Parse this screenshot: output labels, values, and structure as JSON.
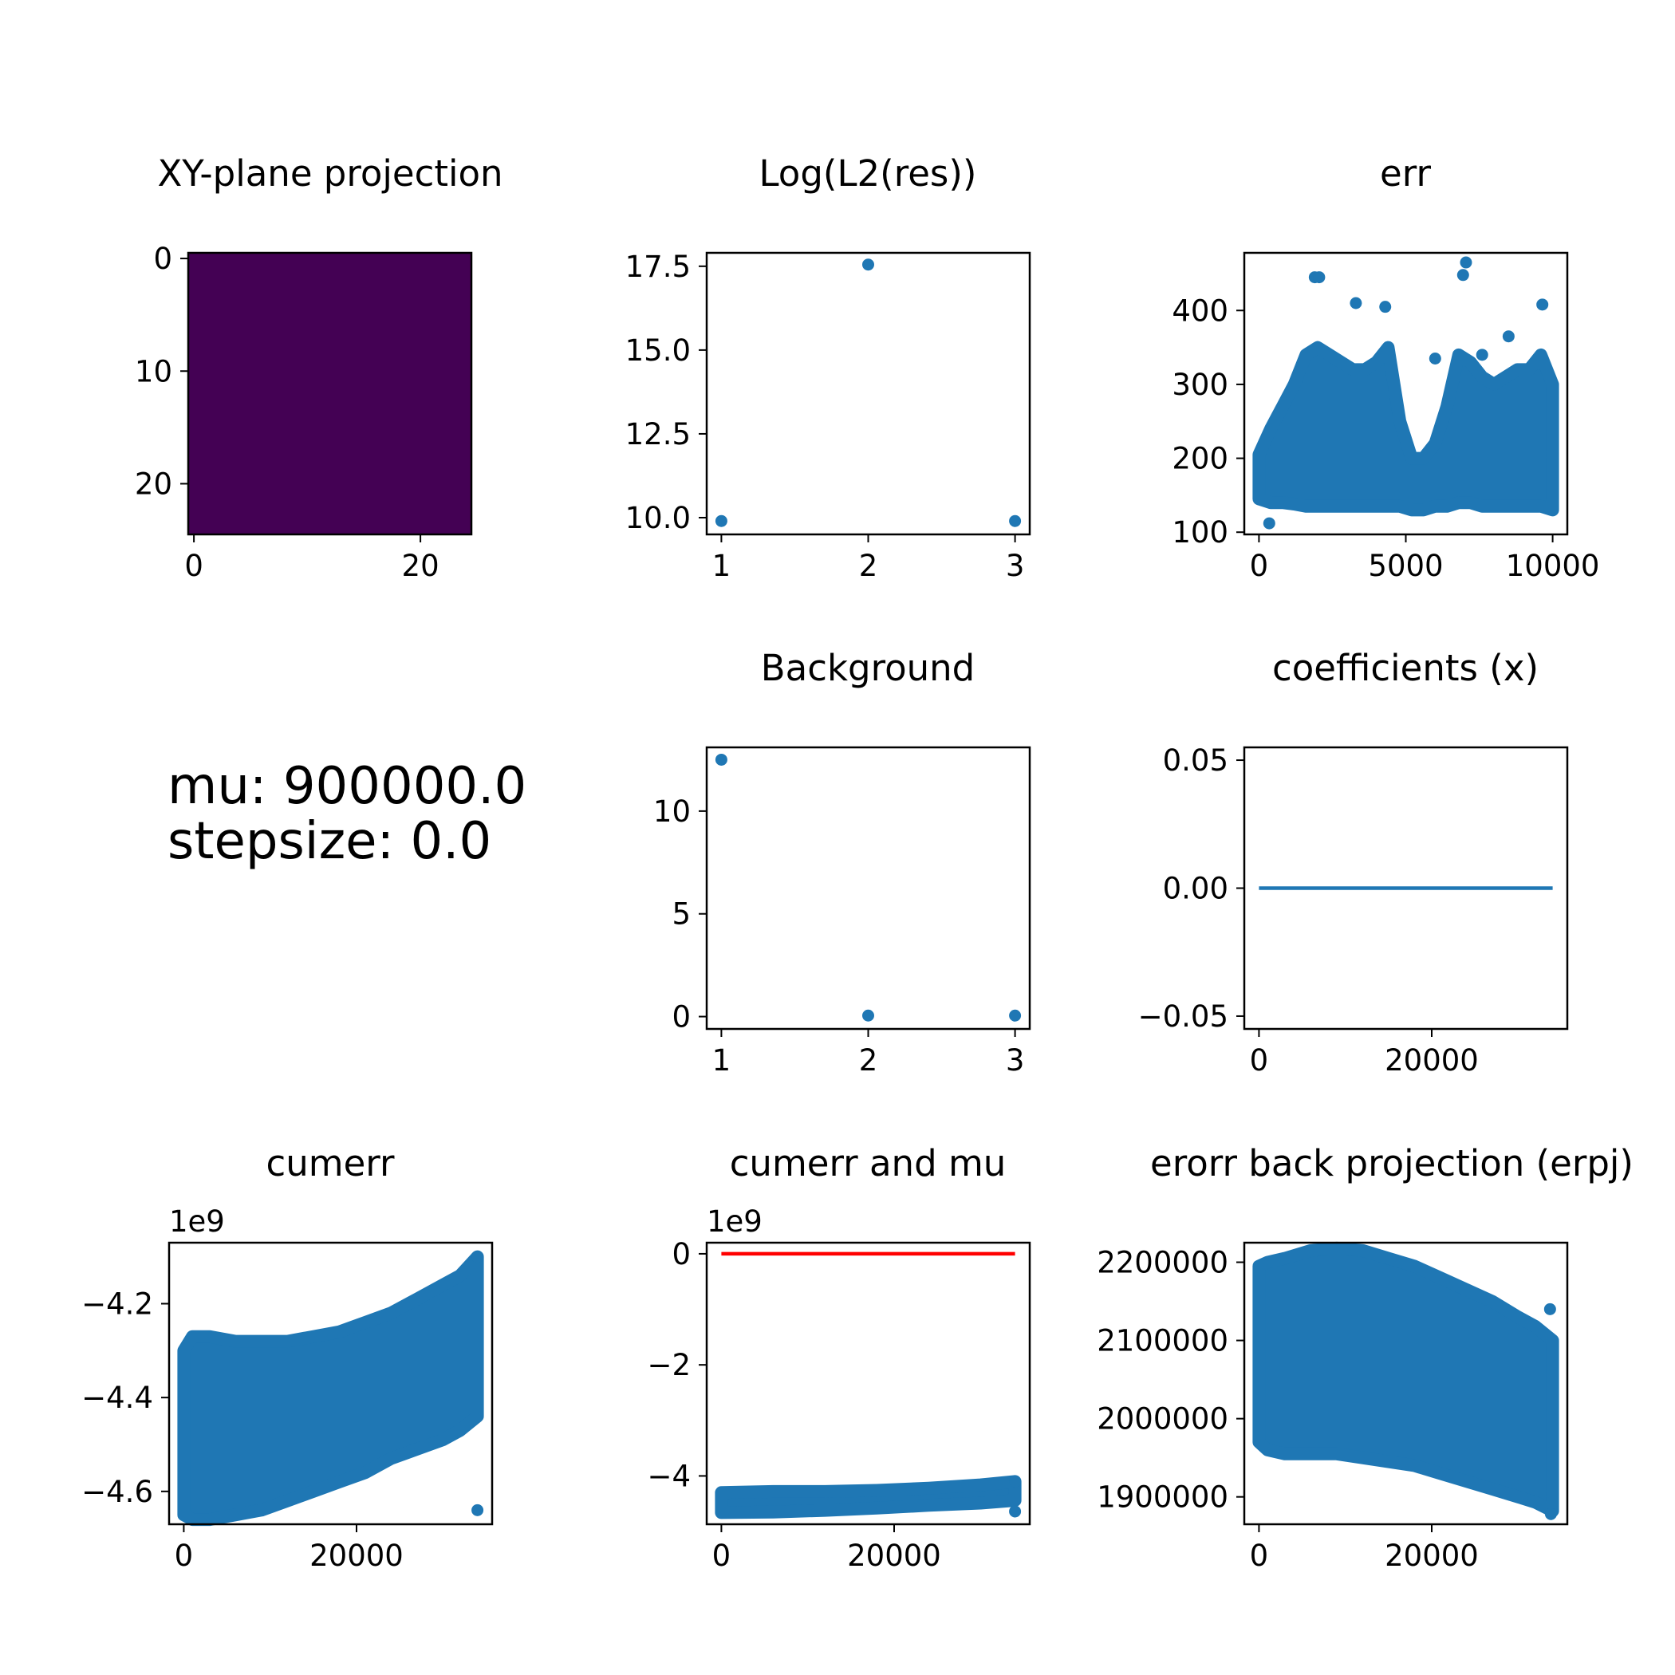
{
  "info": {
    "mu_line": "mu: 900000.0",
    "stepsize_line": "stepsize: 0.0"
  },
  "chart_data": [
    {
      "id": "xy",
      "type": "heatmap",
      "title": "XY-plane projection",
      "xlabel": "",
      "ylabel": "",
      "xlim": [
        -0.5,
        24.5
      ],
      "ylim": [
        24.5,
        -0.5
      ],
      "xticks": [
        0,
        20
      ],
      "yticks": [
        0,
        10,
        20
      ],
      "fill": "#440154",
      "grid": false
    },
    {
      "id": "l2",
      "type": "scatter",
      "title": "Log(L2(res))",
      "xlabel": "",
      "ylabel": "",
      "xlim": [
        0.9,
        3.1
      ],
      "ylim": [
        9.5,
        17.9
      ],
      "xticks": [
        1,
        2,
        3
      ],
      "yticks": [
        10.0,
        12.5,
        15.0,
        17.5
      ],
      "tick_decimals": 1,
      "points": [
        [
          1,
          9.9
        ],
        [
          2,
          17.55
        ],
        [
          3,
          9.9
        ]
      ],
      "color": "#1f77b4",
      "grid": false
    },
    {
      "id": "err",
      "type": "scatter",
      "title": "err",
      "xlabel": "",
      "ylabel": "",
      "xlim": [
        -500,
        10500
      ],
      "ylim": [
        97,
        478
      ],
      "xticks": [
        0,
        5000,
        10000
      ],
      "yticks": [
        100,
        200,
        300,
        400
      ],
      "band": [
        [
          0,
          145,
          205
        ],
        [
          400,
          140,
          240
        ],
        [
          800,
          140,
          270
        ],
        [
          1200,
          138,
          300
        ],
        [
          1600,
          135,
          340
        ],
        [
          2000,
          135,
          350
        ],
        [
          2400,
          135,
          340
        ],
        [
          2800,
          135,
          330
        ],
        [
          3200,
          135,
          320
        ],
        [
          3600,
          135,
          320
        ],
        [
          4000,
          135,
          330
        ],
        [
          4400,
          135,
          350
        ],
        [
          4800,
          135,
          250
        ],
        [
          5200,
          130,
          200
        ],
        [
          5600,
          130,
          200
        ],
        [
          6000,
          135,
          220
        ],
        [
          6400,
          135,
          270
        ],
        [
          6800,
          140,
          340
        ],
        [
          7200,
          140,
          330
        ],
        [
          7600,
          135,
          310
        ],
        [
          8000,
          135,
          300
        ],
        [
          8400,
          135,
          310
        ],
        [
          8800,
          135,
          320
        ],
        [
          9200,
          135,
          320
        ],
        [
          9600,
          135,
          340
        ],
        [
          10000,
          130,
          300
        ]
      ],
      "outliers": [
        [
          350,
          112
        ],
        [
          1900,
          445
        ],
        [
          2050,
          445
        ],
        [
          3300,
          410
        ],
        [
          4300,
          405
        ],
        [
          6000,
          335
        ],
        [
          6950,
          448
        ],
        [
          7050,
          465
        ],
        [
          9650,
          408
        ],
        [
          7600,
          340
        ],
        [
          8500,
          365
        ]
      ],
      "color": "#1f77b4",
      "grid": false
    },
    {
      "id": "bg",
      "type": "scatter",
      "title": "Background",
      "xlabel": "",
      "ylabel": "",
      "xlim": [
        0.9,
        3.1
      ],
      "ylim": [
        -0.6,
        13.1
      ],
      "xticks": [
        1,
        2,
        3
      ],
      "yticks": [
        0,
        5,
        10
      ],
      "points": [
        [
          1,
          12.5
        ],
        [
          2,
          0.05
        ],
        [
          3,
          0.05
        ]
      ],
      "color": "#1f77b4",
      "grid": false
    },
    {
      "id": "coef",
      "type": "line",
      "title": "coefficients (x)",
      "xlabel": "",
      "ylabel": "",
      "xlim": [
        -1700,
        35700
      ],
      "ylim": [
        -0.055,
        0.055
      ],
      "xticks": [
        0,
        20000
      ],
      "yticks": [
        -0.05,
        0.0,
        0.05
      ],
      "tick_decimals": 2,
      "line": [
        [
          0,
          0.0
        ],
        [
          34000,
          0.0
        ]
      ],
      "color": "#1f77b4",
      "grid": false
    },
    {
      "id": "cumerr",
      "type": "scatter",
      "title": "cumerr",
      "xlabel": "",
      "ylabel": "",
      "offset_label": "1e9",
      "xlim": [
        -1700,
        35700
      ],
      "ylim": [
        -4.67,
        -4.07
      ],
      "xticks": [
        0,
        20000
      ],
      "yticks": [
        -4.6,
        -4.4,
        -4.2
      ],
      "tick_decimals": 1,
      "band": [
        [
          0,
          -4.65,
          -4.3
        ],
        [
          1000,
          -4.66,
          -4.27
        ],
        [
          3000,
          -4.66,
          -4.27
        ],
        [
          6000,
          -4.65,
          -4.28
        ],
        [
          9000,
          -4.64,
          -4.28
        ],
        [
          12000,
          -4.62,
          -4.28
        ],
        [
          15000,
          -4.6,
          -4.27
        ],
        [
          18000,
          -4.58,
          -4.26
        ],
        [
          21000,
          -4.56,
          -4.24
        ],
        [
          24000,
          -4.53,
          -4.22
        ],
        [
          27000,
          -4.51,
          -4.19
        ],
        [
          30000,
          -4.49,
          -4.16
        ],
        [
          32000,
          -4.47,
          -4.14
        ],
        [
          34000,
          -4.44,
          -4.1
        ]
      ],
      "outliers": [
        [
          34000,
          -4.1
        ],
        [
          34000,
          -4.64
        ]
      ],
      "color": "#1f77b4",
      "grid": false
    },
    {
      "id": "cumerrmu",
      "type": "scatter",
      "title": "cumerr and mu",
      "xlabel": "",
      "ylabel": "",
      "offset_label": "1e9",
      "xlim": [
        -1700,
        35700
      ],
      "ylim": [
        -4.87,
        0.2
      ],
      "xticks": [
        0,
        20000
      ],
      "yticks": [
        -4,
        -2,
        0
      ],
      "band": [
        [
          0,
          -4.66,
          -4.3
        ],
        [
          6000,
          -4.65,
          -4.28
        ],
        [
          12000,
          -4.62,
          -4.28
        ],
        [
          18000,
          -4.58,
          -4.26
        ],
        [
          24000,
          -4.53,
          -4.22
        ],
        [
          30000,
          -4.49,
          -4.16
        ],
        [
          34000,
          -4.44,
          -4.1
        ]
      ],
      "outliers": [
        [
          34000,
          -4.1
        ],
        [
          34000,
          -4.64
        ]
      ],
      "line": [
        [
          0,
          0.0009
        ],
        [
          34000,
          0.0009
        ]
      ],
      "line_color": "#ff0000",
      "color": "#1f77b4",
      "grid": false
    },
    {
      "id": "erpj",
      "type": "scatter",
      "title": "erorr back projection (erpj)",
      "xlabel": "",
      "ylabel": "",
      "xlim": [
        -1700,
        35700
      ],
      "ylim": [
        1865000,
        2225000
      ],
      "xticks": [
        0,
        20000
      ],
      "yticks": [
        1900000,
        2000000,
        2100000,
        2200000
      ],
      "band": [
        [
          0,
          1970000,
          2195000
        ],
        [
          1000,
          1960000,
          2200000
        ],
        [
          3000,
          1955000,
          2205000
        ],
        [
          6000,
          1955000,
          2215000
        ],
        [
          9000,
          1955000,
          2218000
        ],
        [
          12000,
          1950000,
          2215000
        ],
        [
          15000,
          1945000,
          2205000
        ],
        [
          18000,
          1940000,
          2195000
        ],
        [
          21000,
          1930000,
          2180000
        ],
        [
          24000,
          1920000,
          2165000
        ],
        [
          27000,
          1910000,
          2150000
        ],
        [
          30000,
          1900000,
          2130000
        ],
        [
          32000,
          1893000,
          2118000
        ],
        [
          34000,
          1882000,
          2100000
        ]
      ],
      "outliers": [
        [
          33700,
          2140000
        ],
        [
          33800,
          1878000
        ]
      ],
      "color": "#1f77b4",
      "grid": false
    }
  ]
}
